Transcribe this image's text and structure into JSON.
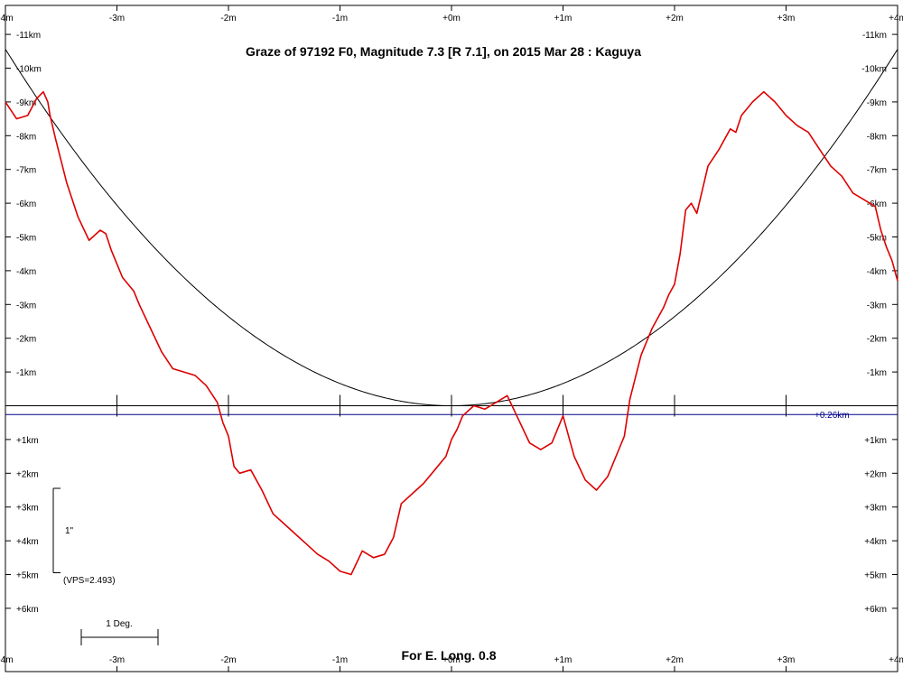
{
  "chart_data": {
    "type": "line",
    "title": "Graze of  97192 F0,  Magnitude 7.3 [R 7.1],  on 2015 Mar 28  :  Kaguya",
    "footer": "For E. Long. 0.8",
    "x_unit": "m",
    "y_unit": "km",
    "xlim": [
      -4,
      4
    ],
    "ylim": [
      -11.5,
      7.5
    ],
    "x_ticks": [
      -4,
      -3,
      -2,
      -1,
      0,
      1,
      2,
      3,
      4
    ],
    "x_tick_labels": [
      "-4m",
      "-3m",
      "-2m",
      "-1m",
      "+0m",
      "+1m",
      "+2m",
      "+3m",
      "+4m"
    ],
    "y_ticks_upper": [
      -11,
      -10,
      -9,
      -8,
      -7,
      -6,
      -5,
      -4,
      -3,
      -2,
      -1
    ],
    "y_tick_labels_upper": [
      "-11km",
      "-10km",
      "-9km",
      "-8km",
      "-7km",
      "-6km",
      "-5km",
      "-4km",
      "-3km",
      "-2km",
      "-1km"
    ],
    "y_ticks_lower": [
      1,
      2,
      3,
      4,
      5,
      6
    ],
    "y_tick_labels_lower": [
      "+1km",
      "+2km",
      "+3km",
      "+4km",
      "+5km",
      "+6km"
    ],
    "offset_line_value": 0.26,
    "offset_label": "+0.26km",
    "scale_vertical_label": "1\"",
    "scale_vertical_value": 2.5,
    "vps_label": "(VPS=2.493)",
    "scale_horizontal_label": "1 Deg.",
    "reference_curve": {
      "description_values": "parabola vertex at (0, 0), y = -0.66 * x^2 (km vs m)",
      "coefficient": 0.66
    },
    "series": [
      {
        "color": "#dd0000",
        "x": [
          -4.0,
          -3.9,
          -3.8,
          -3.72,
          -3.66,
          -3.62,
          -3.6,
          -3.55,
          -3.45,
          -3.35,
          -3.25,
          -3.15,
          -3.1,
          -3.05,
          -3.0,
          -2.95,
          -2.9,
          -2.85,
          -2.8,
          -2.7,
          -2.6,
          -2.5,
          -2.4,
          -2.3,
          -2.2,
          -2.1,
          -2.05,
          -2.0,
          -1.95,
          -1.9,
          -1.8,
          -1.7,
          -1.6,
          -1.5,
          -1.4,
          -1.3,
          -1.2,
          -1.1,
          -1.0,
          -0.9,
          -0.8,
          -0.7,
          -0.6,
          -0.52,
          -0.45,
          -0.35,
          -0.25,
          -0.15,
          -0.05,
          0.0,
          0.05,
          0.1,
          0.2,
          0.3,
          0.4,
          0.5,
          0.6,
          0.7,
          0.8,
          0.9,
          0.95,
          1.0,
          1.05,
          1.1,
          1.2,
          1.3,
          1.4,
          1.5,
          1.55,
          1.6,
          1.7,
          1.8,
          1.9,
          1.95,
          2.0,
          2.05,
          2.1,
          2.15,
          2.2,
          2.3,
          2.4,
          2.5,
          2.55,
          2.6,
          2.7,
          2.8,
          2.9,
          3.0,
          3.1,
          3.2,
          3.3,
          3.4,
          3.5,
          3.6,
          3.7,
          3.8,
          3.85,
          3.9,
          3.95,
          4.0
        ],
        "y": [
          -9.0,
          -8.5,
          -8.6,
          -9.1,
          -9.3,
          -9.0,
          -8.6,
          -7.9,
          -6.6,
          -5.6,
          -4.9,
          -5.2,
          -5.1,
          -4.6,
          -4.2,
          -3.8,
          -3.6,
          -3.4,
          -3.0,
          -2.3,
          -1.6,
          -1.1,
          -1.0,
          -0.9,
          -0.6,
          -0.1,
          0.5,
          0.9,
          1.8,
          2.0,
          1.9,
          2.5,
          3.2,
          3.5,
          3.8,
          4.1,
          4.4,
          4.6,
          4.9,
          5.0,
          4.3,
          4.5,
          4.4,
          3.9,
          2.9,
          2.6,
          2.3,
          1.9,
          1.5,
          1.0,
          0.7,
          0.3,
          0.0,
          0.1,
          -0.1,
          -0.3,
          0.4,
          1.1,
          1.3,
          1.1,
          0.7,
          0.3,
          0.9,
          1.5,
          2.2,
          2.5,
          2.1,
          1.3,
          0.9,
          -0.2,
          -1.5,
          -2.3,
          -2.9,
          -3.3,
          -3.6,
          -4.5,
          -5.8,
          -6.0,
          -5.7,
          -7.1,
          -7.6,
          -8.2,
          -8.1,
          -8.6,
          -9.0,
          -9.3,
          -9.0,
          -8.6,
          -8.3,
          -8.1,
          -7.6,
          -7.1,
          -6.8,
          -6.3,
          -6.1,
          -5.9,
          -5.2,
          -4.7,
          -4.3,
          -3.7
        ]
      }
    ]
  }
}
